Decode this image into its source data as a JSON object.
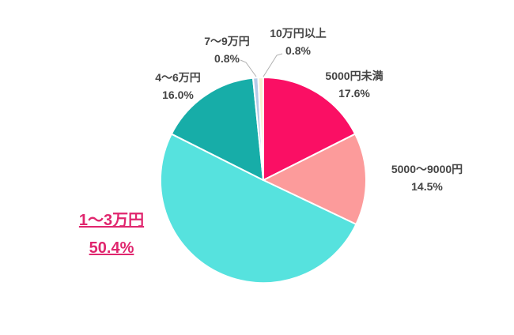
{
  "chart_data": {
    "type": "pie",
    "title": "",
    "legend": "none",
    "direction": "clockwise",
    "start_angle_deg": 0,
    "total_shown": 100.1,
    "slices": [
      {
        "label": "5000円未満",
        "value": 17.6,
        "percent_label": "17.6%",
        "color": "#FA0F64",
        "emphasis": false
      },
      {
        "label": "5000〜9000円",
        "value": 14.5,
        "percent_label": "14.5%",
        "color": "#FC9B9B",
        "emphasis": false
      },
      {
        "label": "1〜3万円",
        "value": 50.4,
        "percent_label": "50.4%",
        "color": "#56E2DE",
        "emphasis": true
      },
      {
        "label": "4〜6万円",
        "value": 16.0,
        "percent_label": "16.0%",
        "color": "#17ADA8",
        "emphasis": false
      },
      {
        "label": "7〜9万円",
        "value": 0.8,
        "percent_label": "0.8%",
        "color": "#B5CBE8",
        "emphasis": false
      },
      {
        "label": "10万円以上",
        "value": 0.8,
        "percent_label": "0.8%",
        "color": "#F9EFD2",
        "emphasis": false
      }
    ],
    "colors": {
      "emphasis_label": "#E0266E",
      "label_text": "#454545",
      "leader_line": "#B0B0B0",
      "slice_border": "#FFFFFF",
      "background": "#FFFFFF"
    }
  }
}
